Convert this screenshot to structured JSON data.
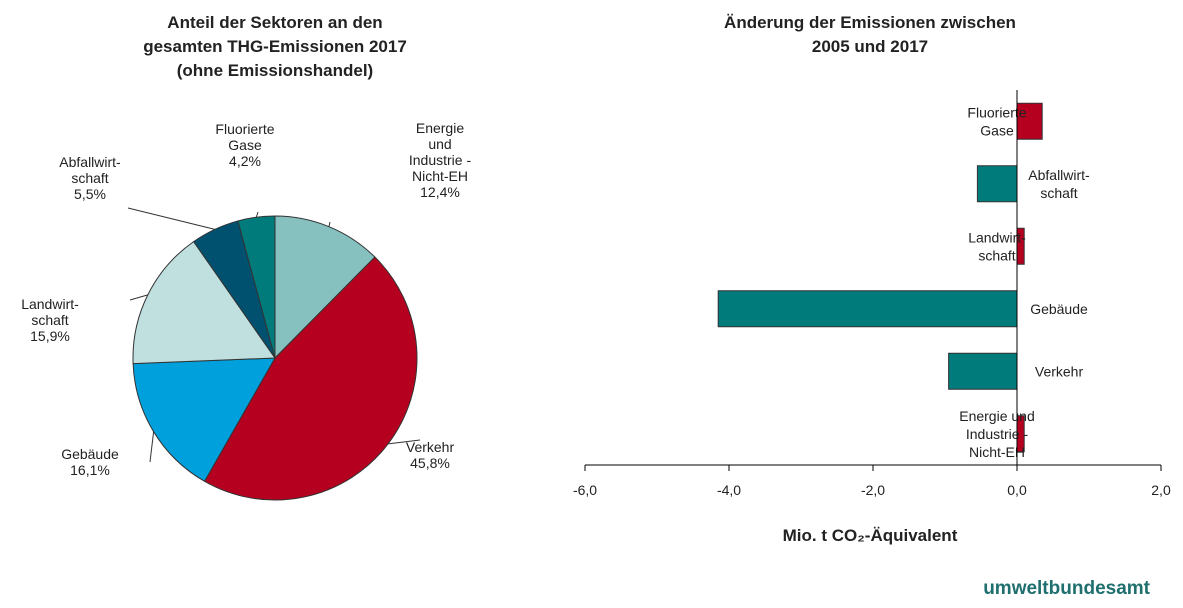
{
  "chart_data": [
    {
      "type": "pie",
      "title": "Anteil der Sektoren an den\ngesamten THG-Emissionen 2017\n(ohne Emissionshandel)",
      "categories": [
        "Energie\nund\nIndustrie -\nNicht-EH",
        "Verkehr",
        "Gebäude",
        "Landwirt-\nschaft",
        "Abfallwirt-\nschaft",
        "Fluorierte\nGase"
      ],
      "values": [
        12.4,
        45.8,
        16.1,
        15.9,
        5.5,
        4.2
      ],
      "value_labels": [
        "12,4%",
        "45,8%",
        "16,1%",
        "15,9%",
        "5,5%",
        "4,2%"
      ],
      "colors": [
        "#86c1c0",
        "#b5001f",
        "#00a0dc",
        "#c0dfdf",
        "#00506f",
        "#007b7b"
      ]
    },
    {
      "type": "hbar",
      "title": "Änderung der Emissionen zwischen\n2005 und 2017",
      "categories": [
        "Fluorierte\nGase",
        "Abfallwirt-\nschaft",
        "Landwirt-\nschaft",
        "Gebäude",
        "Verkehr",
        "Energie und\nIndustrie -\nNicht-EH"
      ],
      "values": [
        0.35,
        -0.55,
        0.1,
        -4.15,
        -0.95,
        0.1
      ],
      "colors": [
        "#b5001f",
        "#007b7b",
        "#b5001f",
        "#007b7b",
        "#007b7b",
        "#b5001f"
      ],
      "xlim": [
        -6,
        2
      ],
      "xticks": [
        {
          "value": -6,
          "label": "-6,0"
        },
        {
          "value": -4,
          "label": "-4,0"
        },
        {
          "value": -2,
          "label": "-2,0"
        },
        {
          "value": 0,
          "label": "0,0"
        },
        {
          "value": 2,
          "label": "2,0"
        }
      ],
      "xlabel": "Mio. t CO₂-Äquivalent"
    }
  ],
  "logo": "umweltbundesamt"
}
